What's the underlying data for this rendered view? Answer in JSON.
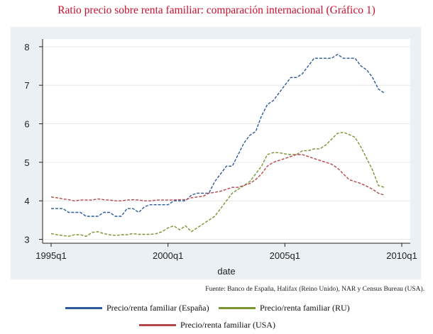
{
  "chart_data": {
    "type": "line",
    "title": "Ratio precio sobre renta familiar: comparación internacional (Gráfico 1)",
    "xlabel": "date",
    "ylabel": "",
    "xlim": [
      1995,
      2010
    ],
    "ylim": [
      2.9,
      8.2
    ],
    "x_ticks": [
      {
        "value": 1995,
        "label": "1995q1"
      },
      {
        "value": 2000,
        "label": "2000q1"
      },
      {
        "value": 2005,
        "label": "2005q1"
      },
      {
        "value": 2010,
        "label": "2010q1"
      }
    ],
    "y_ticks": [
      3,
      4,
      5,
      6,
      7,
      8
    ],
    "grid": "horizontal",
    "source": "Fuente: Banco de España, Halifax (Reino Unido), NAR y Census Bureau (USA).",
    "series": [
      {
        "name": "Precio/renta familiar (España)",
        "color": "#2a5a9a",
        "x": [
          1995,
          1995.25,
          1995.5,
          1995.75,
          1996,
          1996.25,
          1996.5,
          1996.75,
          1997,
          1997.25,
          1997.5,
          1997.75,
          1998,
          1998.25,
          1998.5,
          1998.75,
          1999,
          1999.25,
          1999.5,
          1999.75,
          2000,
          2000.25,
          2000.5,
          2000.75,
          2001,
          2001.25,
          2001.5,
          2001.75,
          2002,
          2002.25,
          2002.5,
          2002.75,
          2003,
          2003.25,
          2003.5,
          2003.75,
          2004,
          2004.25,
          2004.5,
          2004.75,
          2005,
          2005.25,
          2005.5,
          2005.75,
          2006,
          2006.25,
          2006.5,
          2006.75,
          2007,
          2007.25,
          2007.5,
          2007.75,
          2008,
          2008.25,
          2008.5,
          2008.75,
          2009,
          2009.25
        ],
        "values": [
          3.8,
          3.8,
          3.8,
          3.7,
          3.7,
          3.7,
          3.6,
          3.6,
          3.6,
          3.7,
          3.7,
          3.6,
          3.6,
          3.8,
          3.8,
          3.7,
          3.85,
          3.9,
          3.9,
          3.9,
          3.9,
          4.0,
          4.0,
          4.0,
          4.15,
          4.2,
          4.2,
          4.2,
          4.5,
          4.7,
          4.9,
          4.9,
          5.2,
          5.5,
          5.7,
          5.8,
          6.2,
          6.5,
          6.6,
          6.8,
          7.0,
          7.2,
          7.2,
          7.3,
          7.5,
          7.7,
          7.7,
          7.7,
          7.7,
          7.8,
          7.7,
          7.7,
          7.7,
          7.5,
          7.4,
          7.2,
          6.9,
          6.8
        ]
      },
      {
        "name": "Precio/renta familiar (RU)",
        "color": "#7a9432",
        "x": [
          1995,
          1995.25,
          1995.5,
          1995.75,
          1996,
          1996.25,
          1996.5,
          1996.75,
          1997,
          1997.25,
          1997.5,
          1997.75,
          1998,
          1998.25,
          1998.5,
          1998.75,
          1999,
          1999.25,
          1999.5,
          1999.75,
          2000,
          2000.25,
          2000.5,
          2000.75,
          2001,
          2001.25,
          2001.5,
          2001.75,
          2002,
          2002.25,
          2002.5,
          2002.75,
          2003,
          2003.25,
          2003.5,
          2003.75,
          2004,
          2004.25,
          2004.5,
          2004.75,
          2005,
          2005.25,
          2005.5,
          2005.75,
          2006,
          2006.25,
          2006.5,
          2006.75,
          2007,
          2007.25,
          2007.5,
          2007.75,
          2008,
          2008.25,
          2008.5,
          2008.75,
          2009,
          2009.25
        ],
        "values": [
          3.15,
          3.12,
          3.1,
          3.08,
          3.12,
          3.12,
          3.08,
          3.18,
          3.2,
          3.15,
          3.12,
          3.1,
          3.12,
          3.12,
          3.15,
          3.13,
          3.13,
          3.13,
          3.15,
          3.2,
          3.3,
          3.35,
          3.25,
          3.35,
          3.2,
          3.3,
          3.4,
          3.5,
          3.6,
          3.8,
          4.0,
          4.2,
          4.3,
          4.4,
          4.5,
          4.7,
          4.9,
          5.2,
          5.25,
          5.25,
          5.22,
          5.2,
          5.2,
          5.3,
          5.3,
          5.35,
          5.35,
          5.45,
          5.6,
          5.75,
          5.78,
          5.72,
          5.65,
          5.4,
          5.1,
          4.8,
          4.4,
          4.35
        ]
      },
      {
        "name": "Precio/renta familiar (USA)",
        "color": "#b5484a",
        "x": [
          1995,
          1995.25,
          1995.5,
          1995.75,
          1996,
          1996.25,
          1996.5,
          1996.75,
          1997,
          1997.25,
          1997.5,
          1997.75,
          1998,
          1998.25,
          1998.5,
          1998.75,
          1999,
          1999.25,
          1999.5,
          1999.75,
          2000,
          2000.25,
          2000.5,
          2000.75,
          2001,
          2001.25,
          2001.5,
          2001.75,
          2002,
          2002.25,
          2002.5,
          2002.75,
          2003,
          2003.25,
          2003.5,
          2003.75,
          2004,
          2004.25,
          2004.5,
          2004.75,
          2005,
          2005.25,
          2005.5,
          2005.75,
          2006,
          2006.25,
          2006.5,
          2006.75,
          2007,
          2007.25,
          2007.5,
          2007.75,
          2008,
          2008.25,
          2008.5,
          2008.75,
          2009,
          2009.25
        ],
        "values": [
          4.1,
          4.08,
          4.05,
          4.03,
          4.0,
          4.02,
          4.02,
          4.02,
          4.05,
          4.03,
          4.02,
          4.0,
          4.0,
          4.02,
          4.03,
          4.02,
          4.0,
          4.0,
          4.02,
          4.02,
          4.02,
          4.02,
          4.03,
          4.03,
          4.08,
          4.1,
          4.12,
          4.2,
          4.22,
          4.25,
          4.3,
          4.35,
          4.35,
          4.4,
          4.45,
          4.55,
          4.7,
          4.9,
          5.0,
          5.05,
          5.1,
          5.15,
          5.2,
          5.2,
          5.15,
          5.1,
          5.05,
          5.0,
          4.95,
          4.85,
          4.7,
          4.55,
          4.5,
          4.45,
          4.38,
          4.3,
          4.2,
          4.15
        ]
      }
    ]
  },
  "legend": {
    "spain": "Precio/renta familiar (España)",
    "uk": "Precio/renta familiar (RU)",
    "usa": "Precio/renta familiar (USA)"
  }
}
